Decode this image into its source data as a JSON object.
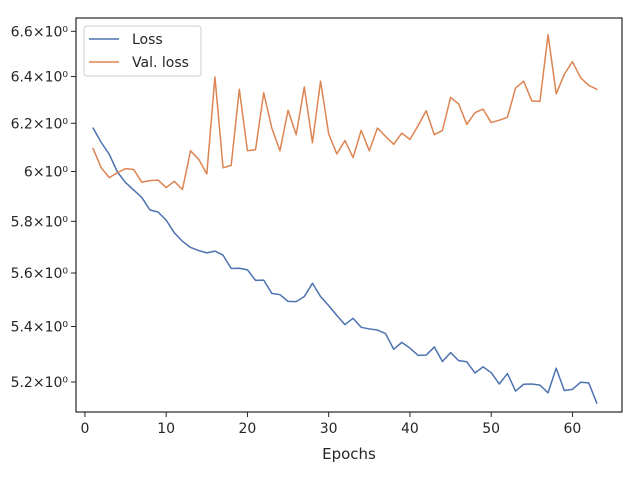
{
  "chart_data": {
    "type": "line",
    "xlabel": "Epochs",
    "ylabel": "",
    "title": "",
    "xlim": [
      -1.1,
      66.1
    ],
    "ylim": [
      5.095,
      6.66
    ],
    "yscale": "log",
    "grid": false,
    "legend_position": "top-left",
    "x_ticks": [
      0,
      10,
      20,
      30,
      40,
      50,
      60
    ],
    "x_tick_labels": [
      "0",
      "10",
      "20",
      "30",
      "40",
      "50",
      "60"
    ],
    "y_ticks": [
      5.2,
      5.4,
      5.6,
      5.8,
      6.0,
      6.2,
      6.4,
      6.6
    ],
    "y_tick_labels": [
      "5.2×10⁰",
      "5.4×10⁰",
      "5.6×10⁰",
      "5.8×10⁰",
      "6×10⁰",
      "6.2×10⁰",
      "6.4×10⁰",
      "6.6×10⁰"
    ],
    "x": [
      1,
      2,
      3,
      4,
      5,
      6,
      7,
      8,
      9,
      10,
      11,
      12,
      13,
      14,
      15,
      16,
      17,
      18,
      19,
      20,
      21,
      22,
      23,
      24,
      25,
      26,
      27,
      28,
      29,
      30,
      31,
      32,
      33,
      34,
      35,
      36,
      37,
      38,
      39,
      40,
      41,
      42,
      43,
      44,
      45,
      46,
      47,
      48,
      49,
      50,
      51,
      52,
      53,
      54,
      55,
      56,
      57,
      58,
      59,
      60,
      61,
      62,
      63
    ],
    "series": [
      {
        "name": "Loss",
        "color": "#4c72b0",
        "values": [
          6.18,
          6.12,
          6.07,
          5.998,
          5.955,
          5.925,
          5.895,
          5.845,
          5.837,
          5.805,
          5.755,
          5.722,
          5.698,
          5.686,
          5.677,
          5.684,
          5.668,
          5.617,
          5.618,
          5.612,
          5.572,
          5.573,
          5.523,
          5.518,
          5.493,
          5.492,
          5.511,
          5.561,
          5.511,
          5.477,
          5.441,
          5.407,
          5.43,
          5.397,
          5.391,
          5.387,
          5.374,
          5.317,
          5.342,
          5.321,
          5.295,
          5.296,
          5.325,
          5.273,
          5.305,
          5.276,
          5.272,
          5.232,
          5.254,
          5.233,
          5.193,
          5.23,
          5.168,
          5.192,
          5.193,
          5.189,
          5.162,
          5.249,
          5.17,
          5.174,
          5.199,
          5.197,
          5.126
        ]
      },
      {
        "name": "Val. loss",
        "color": "#dd8452",
        "values": [
          6.095,
          6.015,
          5.975,
          5.995,
          6.012,
          6.008,
          5.957,
          5.963,
          5.965,
          5.935,
          5.96,
          5.927,
          6.085,
          6.05,
          5.99,
          6.398,
          6.015,
          6.025,
          6.345,
          6.085,
          6.09,
          6.33,
          6.18,
          6.085,
          6.255,
          6.152,
          6.355,
          6.119,
          6.38,
          6.155,
          6.072,
          6.128,
          6.057,
          6.17,
          6.085,
          6.18,
          6.145,
          6.112,
          6.159,
          6.132,
          6.19,
          6.253,
          6.152,
          6.17,
          6.31,
          6.282,
          6.195,
          6.245,
          6.26,
          6.203,
          6.213,
          6.225,
          6.35,
          6.38,
          6.295,
          6.293,
          6.585,
          6.325,
          6.41,
          6.465,
          6.395,
          6.362,
          6.345
        ]
      }
    ]
  }
}
